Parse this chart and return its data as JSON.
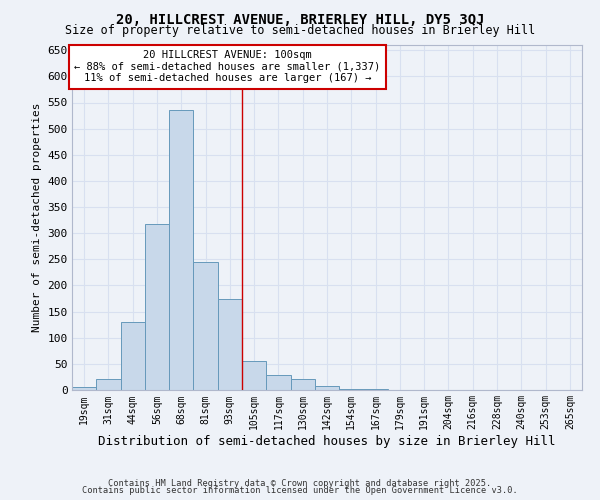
{
  "title1": "20, HILLCREST AVENUE, BRIERLEY HILL, DY5 3QJ",
  "title2": "Size of property relative to semi-detached houses in Brierley Hill",
  "xlabel": "Distribution of semi-detached houses by size in Brierley Hill",
  "ylabel": "Number of semi-detached properties",
  "bar_labels": [
    "19sqm",
    "31sqm",
    "44sqm",
    "56sqm",
    "68sqm",
    "81sqm",
    "93sqm",
    "105sqm",
    "117sqm",
    "130sqm",
    "142sqm",
    "154sqm",
    "167sqm",
    "179sqm",
    "191sqm",
    "204sqm",
    "216sqm",
    "228sqm",
    "240sqm",
    "253sqm",
    "265sqm"
  ],
  "bar_values": [
    5,
    22,
    130,
    318,
    535,
    245,
    175,
    55,
    28,
    22,
    8,
    2,
    1,
    0,
    0,
    0,
    0,
    0,
    0,
    0,
    0
  ],
  "bar_color": "#c8d8ea",
  "bar_edge_color": "#6699bb",
  "vline_color": "#cc0000",
  "annotation_title": "20 HILLCREST AVENUE: 100sqm",
  "annotation_line2": "← 88% of semi-detached houses are smaller (1,337)",
  "annotation_line3": "11% of semi-detached houses are larger (167) →",
  "annotation_box_color": "#ffffff",
  "annotation_box_edge": "#cc0000",
  "ylim": [
    0,
    660
  ],
  "yticks": [
    0,
    50,
    100,
    150,
    200,
    250,
    300,
    350,
    400,
    450,
    500,
    550,
    600,
    650
  ],
  "background_color": "#eef2f8",
  "grid_color": "#d8e0f0",
  "footer1": "Contains HM Land Registry data © Crown copyright and database right 2025.",
  "footer2": "Contains public sector information licensed under the Open Government Licence v3.0."
}
